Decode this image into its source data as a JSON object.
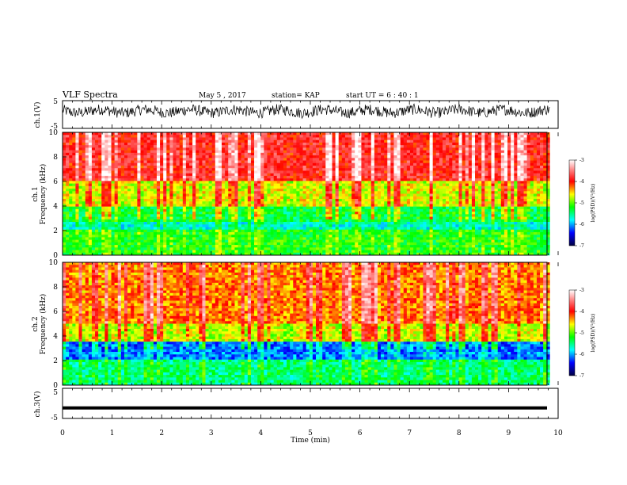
{
  "header": {
    "title": "VLF Spectra",
    "date": "May 5 , 2017",
    "station": "station= KAP",
    "start_ut": "start UT = 6 : 40 : 1"
  },
  "chart_data": [
    {
      "type": "line",
      "name": "ch1-waveform",
      "ylabel": "ch.1(V)",
      "xlim": [
        0,
        9.83
      ],
      "ylim": [
        -5,
        5
      ],
      "yticks": [
        "5",
        "-5"
      ],
      "mean": 1.2,
      "spread": 2.0
    },
    {
      "type": "heatmap",
      "name": "ch1-spectrogram",
      "ylabel": "ch.1\nFrequency (kHz)",
      "ylim": [
        0,
        10
      ],
      "yticks": [
        "0",
        "2",
        "4",
        "6",
        "8",
        "10"
      ],
      "colorbar": {
        "label": "log(PSD)(V²/Hz)",
        "range": [
          -7,
          -3
        ],
        "ticks": [
          "-3",
          "-4",
          "-5",
          "-6",
          "-7"
        ]
      }
    },
    {
      "type": "heatmap",
      "name": "ch2-spectrogram",
      "ylabel": "ch.2\nFrequency (kHz)",
      "ylim": [
        0,
        10
      ],
      "yticks": [
        "0",
        "2",
        "4",
        "6",
        "8",
        "10"
      ],
      "colorbar": {
        "label": "log(PSD)(V²/Hz)",
        "range": [
          -7,
          -3
        ],
        "ticks": [
          "-3",
          "-4",
          "-5",
          "-6",
          "-7"
        ]
      }
    },
    {
      "type": "line",
      "name": "ch3-waveform",
      "ylabel": "ch.3(V)",
      "ylim": [
        -5,
        5
      ],
      "yticks": [
        "5",
        "-5"
      ],
      "value": -1.5
    }
  ],
  "x_axis": {
    "label": "Time (min)",
    "ticks": [
      "0",
      "1",
      "2",
      "3",
      "4",
      "5",
      "6",
      "7",
      "8",
      "9",
      "10"
    ],
    "range": [
      0,
      10
    ]
  }
}
